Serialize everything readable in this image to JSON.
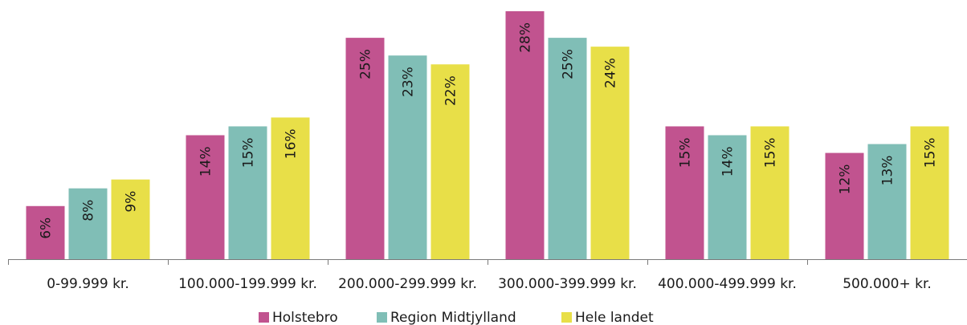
{
  "chart_data": {
    "type": "bar",
    "categories": [
      "0-99.999 kr.",
      "100.000-199.999 kr.",
      "200.000-299.999 kr.",
      "300.000-399.999 kr.",
      "400.000-499.999 kr.",
      "500.000+ kr."
    ],
    "series": [
      {
        "name": "Holstebro",
        "color": "#C1538F",
        "values": [
          6,
          14,
          25,
          28,
          15,
          12
        ],
        "labels": [
          "6%",
          "14%",
          "25%",
          "28%",
          "15%",
          "12%"
        ]
      },
      {
        "name": "Region Midtjylland",
        "color": "#80BEB6",
        "values": [
          8,
          15,
          23,
          25,
          14,
          13
        ],
        "labels": [
          "8%",
          "15%",
          "23%",
          "25%",
          "14%",
          "13%"
        ]
      },
      {
        "name": "Hele landet",
        "color": "#E8DF48",
        "values": [
          9,
          16,
          22,
          24,
          15,
          15
        ],
        "labels": [
          "9%",
          "16%",
          "22%",
          "24%",
          "15%",
          "15%"
        ]
      }
    ],
    "title": "",
    "xlabel": "",
    "ylabel": "",
    "ylim": [
      0,
      28
    ],
    "grid": false,
    "legend_position": "bottom-center"
  }
}
